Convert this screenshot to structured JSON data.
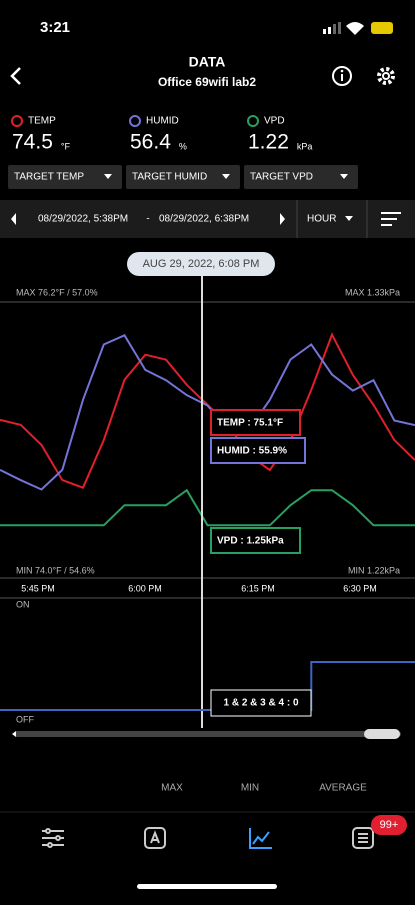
{
  "status_bar": {
    "time": "3:21"
  },
  "header": {
    "title": "DATA",
    "subtitle": "Office 69wifi lab2"
  },
  "readings": [
    {
      "label": "TEMP",
      "value": 74.5,
      "unit": "°F",
      "color": "#e0202a"
    },
    {
      "label": "HUMID",
      "value": 56.4,
      "unit": "%",
      "color": "#7474d8"
    },
    {
      "label": "VPD",
      "value": 1.22,
      "unit": "kPa",
      "color": "#2aa060"
    }
  ],
  "targets": [
    "TARGET TEMP",
    "TARGET HUMID",
    "TARGET VPD"
  ],
  "range": {
    "start": "08/29/2022, 5:38PM",
    "separator": "-",
    "end": "08/29/2022, 6:38PM",
    "interval": "HOUR"
  },
  "chart": {
    "type": "line",
    "cursor_label": "AUG 29, 2022, 6:08 PM",
    "max_left": "MAX 76.2°F / 57.0%",
    "max_right": "MAX 1.33kPa",
    "min_left": "MIN 74.0°F / 54.6%",
    "min_right": "MIN 1.22kPa",
    "time_labels": [
      "5:45 PM",
      "6:00 PM",
      "6:15 PM",
      "6:30 PM"
    ],
    "series": [
      {
        "name": "TEMP",
        "color": "#e0202a",
        "ylim": [
          74.0,
          76.2
        ],
        "tooltip": "TEMP : 75.1°F",
        "values": [
          75.26,
          75.22,
          75.06,
          74.78,
          74.72,
          75.1,
          75.58,
          75.78,
          75.74,
          75.54,
          75.38,
          75.22,
          74.98,
          74.86,
          75.1,
          75.5,
          75.94,
          75.62,
          75.38,
          75.1,
          74.94
        ]
      },
      {
        "name": "HUMID",
        "color": "#7474d8",
        "ylim": [
          54.6,
          57.0
        ],
        "tooltip": "HUMID : 55.9%",
        "values": [
          55.54,
          55.45,
          55.37,
          55.54,
          56.15,
          56.63,
          56.71,
          56.41,
          56.32,
          56.19,
          56.1,
          55.89,
          55.89,
          56.15,
          56.5,
          56.63,
          56.37,
          56.23,
          56.32,
          55.97,
          55.93
        ]
      },
      {
        "name": "VPD",
        "color": "#2aa060",
        "ylim": [
          1.22,
          1.33
        ],
        "tooltip": "VPD : 1.25kPa",
        "values": [
          1.241,
          1.241,
          1.241,
          1.241,
          1.241,
          1.241,
          1.249,
          1.249,
          1.249,
          1.255,
          1.241,
          1.241,
          1.241,
          1.241,
          1.249,
          1.255,
          1.255,
          1.249,
          1.241,
          1.241,
          1.241
        ]
      }
    ]
  },
  "switch_chart": {
    "type": "line",
    "on_label": "ON",
    "off_label": "OFF",
    "ylim": [
      0,
      2
    ],
    "color": "#3a66c8",
    "tooltip": "1 & 2 & 3 & 4 : 0",
    "values": [
      0,
      0,
      0,
      0,
      0,
      0,
      0,
      0,
      0,
      0,
      0,
      0,
      0,
      0,
      0,
      1,
      1,
      1,
      1,
      1,
      1
    ]
  },
  "stats": [
    "MAX",
    "MIN",
    "AVERAGE"
  ],
  "tab_bar": {
    "badge": "99+"
  }
}
